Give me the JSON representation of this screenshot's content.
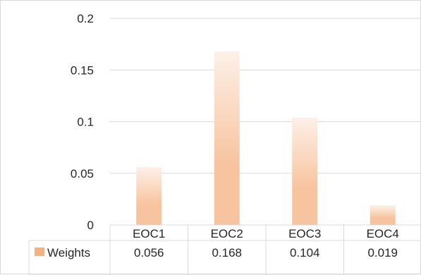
{
  "chart_data": {
    "type": "bar",
    "categories": [
      "EOC1",
      "EOC2",
      "EOC3",
      "EOC4"
    ],
    "series": [
      {
        "name": "Weights",
        "values": [
          0.056,
          0.168,
          0.104,
          0.019
        ]
      }
    ],
    "data_table": {
      "series_label": "Weights",
      "values": [
        "0.056",
        "0.168",
        "0.104",
        "0.019"
      ]
    },
    "y_ticks": [
      "0",
      "0.05",
      "0.1",
      "0.15",
      "0.2"
    ],
    "ylim": [
      0,
      0.2
    ],
    "grid": true,
    "title": "",
    "xlabel": "",
    "ylabel": "",
    "colors": {
      "bar_base": "#f8c4a0",
      "bar_top": "#fdf0e8",
      "legend_key": "#f4b183",
      "grid": "#d9d9d9",
      "text": "#262626"
    }
  }
}
